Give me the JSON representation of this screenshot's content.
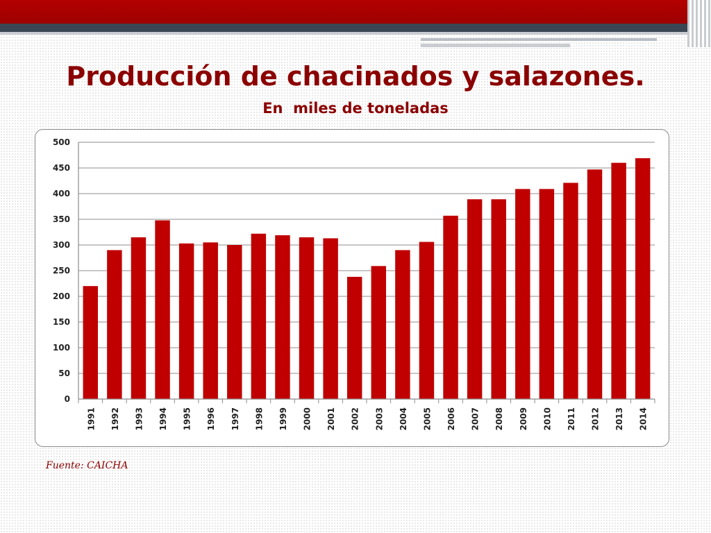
{
  "slide": {
    "title": "Producción de chacinados y salazones.",
    "subtitle": "En  miles de toneladas",
    "source": "Fuente: CAICHA"
  },
  "colors": {
    "bar": "#c00000",
    "title": "#8b0000",
    "grid": "#8c8c8c"
  },
  "chart_data": {
    "type": "bar",
    "categories": [
      "1991",
      "1992",
      "1993",
      "1994",
      "1995",
      "1996",
      "1997",
      "1998",
      "1999",
      "2000",
      "2001",
      "2002",
      "2003",
      "2004",
      "2005",
      "2006",
      "2007",
      "2008",
      "2009",
      "2010",
      "2011",
      "2012",
      "2013",
      "2014"
    ],
    "values": [
      220,
      290,
      315,
      348,
      303,
      305,
      300,
      322,
      319,
      315,
      313,
      238,
      259,
      290,
      306,
      357,
      389,
      389,
      409,
      409,
      421,
      447,
      460,
      469
    ],
    "ylim": [
      0,
      500
    ],
    "yticks": [
      "0",
      "50",
      "100",
      "150",
      "200",
      "250",
      "300",
      "350",
      "400",
      "450",
      "500"
    ],
    "grid": true,
    "legend": "none"
  }
}
